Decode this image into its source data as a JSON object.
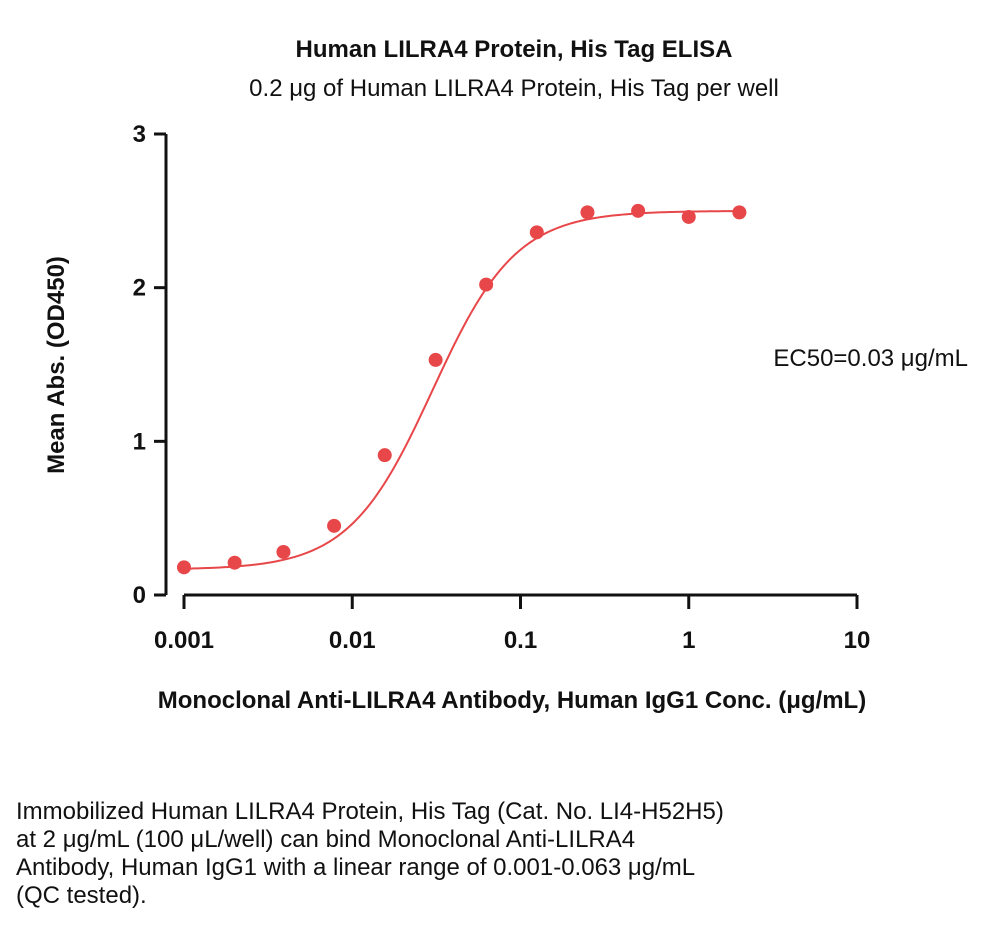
{
  "chart_data": {
    "type": "scatter",
    "title": "Human LILRA4 Protein, His Tag ELISA",
    "subtitle": "0.2 μg of Human LILRA4 Protein, His Tag per well",
    "xlabel": "Monoclonal Anti-LILRA4 Antibody, Human IgG1 Conc. (μg/mL)",
    "ylabel": "Mean Abs. (OD450)",
    "x_scale": "log",
    "xlim": [
      0.001,
      10
    ],
    "ylim": [
      0,
      3
    ],
    "x_ticks": [
      "0.001",
      "0.01",
      "0.1",
      "1",
      "10"
    ],
    "y_ticks": [
      "0",
      "1",
      "2",
      "3"
    ],
    "grid": false,
    "annotation": "EC50=0.03 μg/mL",
    "series": [
      {
        "x": [
          0.001,
          0.002,
          0.0039,
          0.0078,
          0.0156,
          0.0313,
          0.0625,
          0.125,
          0.25,
          0.5,
          1,
          2
        ],
        "y": [
          0.18,
          0.21,
          0.28,
          0.45,
          0.91,
          1.53,
          2.02,
          2.36,
          2.49,
          2.5,
          2.46,
          2.49
        ],
        "fit": "4PL",
        "color": "#e8474a"
      }
    ]
  },
  "caption": "Immobilized Human LILRA4 Protein, His Tag (Cat. No. LI4-H52H5)\nat 2 μg/mL (100 μL/well) can bind Monoclonal Anti-LILRA4\nAntibody, Human IgG1 with a linear range of 0.001-0.063 μg/mL\n(QC tested)."
}
